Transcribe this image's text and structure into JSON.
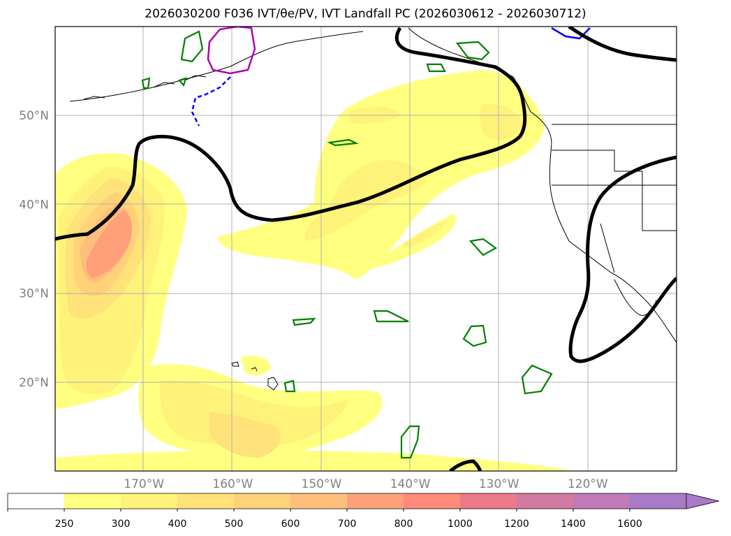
{
  "title": "2026030200 F036 IVT/θe/PV, IVT Landfall PC (2026030612 - 2026030712)",
  "chart_data": {
    "type": "map",
    "title": "2026030200 F036 IVT/θe/PV, IVT Landfall PC (2026030612 - 2026030712)",
    "x_ticks": [
      "170°W",
      "160°W",
      "150°W",
      "140°W",
      "130°W",
      "120°W"
    ],
    "y_ticks": [
      "50°N",
      "40°N",
      "30°N",
      "20°N"
    ],
    "lon_range": [
      -180,
      -110
    ],
    "lat_range": [
      10,
      60
    ],
    "grid": true,
    "colorbar": {
      "levels": [
        "250",
        "300",
        "400",
        "500",
        "600",
        "700",
        "800",
        "1000",
        "1200",
        "1400",
        "1600"
      ],
      "colors": [
        "#ffffff",
        "#ffff80",
        "#fff27a",
        "#ffe27a",
        "#ffd27a",
        "#ffbe7a",
        "#ffa07a",
        "#ff8a7a",
        "#ea7a8a",
        "#d27aa0",
        "#c07ab8",
        "#a87ac8"
      ],
      "extend": "max"
    }
  }
}
